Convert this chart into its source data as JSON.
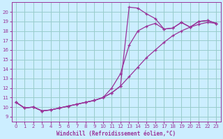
{
  "xlabel": "Windchill (Refroidissement éolien,°C)",
  "background_color": "#cceeff",
  "line_color": "#993399",
  "grid_color": "#99cccc",
  "xlim": [
    -0.5,
    23.5
  ],
  "ylim": [
    8.5,
    21.0
  ],
  "xticks": [
    0,
    1,
    2,
    3,
    4,
    5,
    6,
    7,
    8,
    9,
    10,
    11,
    12,
    13,
    14,
    15,
    16,
    17,
    18,
    19,
    20,
    21,
    22,
    23
  ],
  "yticks": [
    9,
    10,
    11,
    12,
    13,
    14,
    15,
    16,
    17,
    18,
    19,
    20
  ],
  "line1_x": [
    0,
    1,
    2,
    3,
    4,
    5,
    6,
    7,
    8,
    9,
    10,
    11,
    12,
    13,
    14,
    15,
    16,
    17,
    18,
    19,
    20,
    21,
    22,
    23
  ],
  "line1_y": [
    10.5,
    9.9,
    10.0,
    9.6,
    9.7,
    9.9,
    10.1,
    10.3,
    10.5,
    10.7,
    11.0,
    11.5,
    12.2,
    20.5,
    20.4,
    19.8,
    19.3,
    18.2,
    18.3,
    18.9,
    18.4,
    19.0,
    19.1,
    18.8
  ],
  "line2_x": [
    0,
    1,
    2,
    3,
    4,
    5,
    6,
    7,
    8,
    9,
    10,
    11,
    12,
    13,
    14,
    15,
    16,
    17,
    18,
    19,
    20,
    21,
    22,
    23
  ],
  "line2_y": [
    10.5,
    9.9,
    10.0,
    9.6,
    9.7,
    9.9,
    10.1,
    10.3,
    10.5,
    10.7,
    11.0,
    11.5,
    12.2,
    13.2,
    14.2,
    15.2,
    16.0,
    16.8,
    17.5,
    18.0,
    18.4,
    18.7,
    18.9,
    18.8
  ],
  "line3_x": [
    0,
    1,
    2,
    3,
    4,
    5,
    6,
    7,
    8,
    9,
    10,
    11,
    12,
    13,
    14,
    15,
    16,
    17,
    18,
    19,
    20,
    21,
    22,
    23
  ],
  "line3_y": [
    10.5,
    9.9,
    10.0,
    9.6,
    9.7,
    9.9,
    10.1,
    10.3,
    10.5,
    10.7,
    11.0,
    12.0,
    13.5,
    16.5,
    18.0,
    18.5,
    18.8,
    18.2,
    18.3,
    18.9,
    18.4,
    19.0,
    19.1,
    18.8
  ]
}
